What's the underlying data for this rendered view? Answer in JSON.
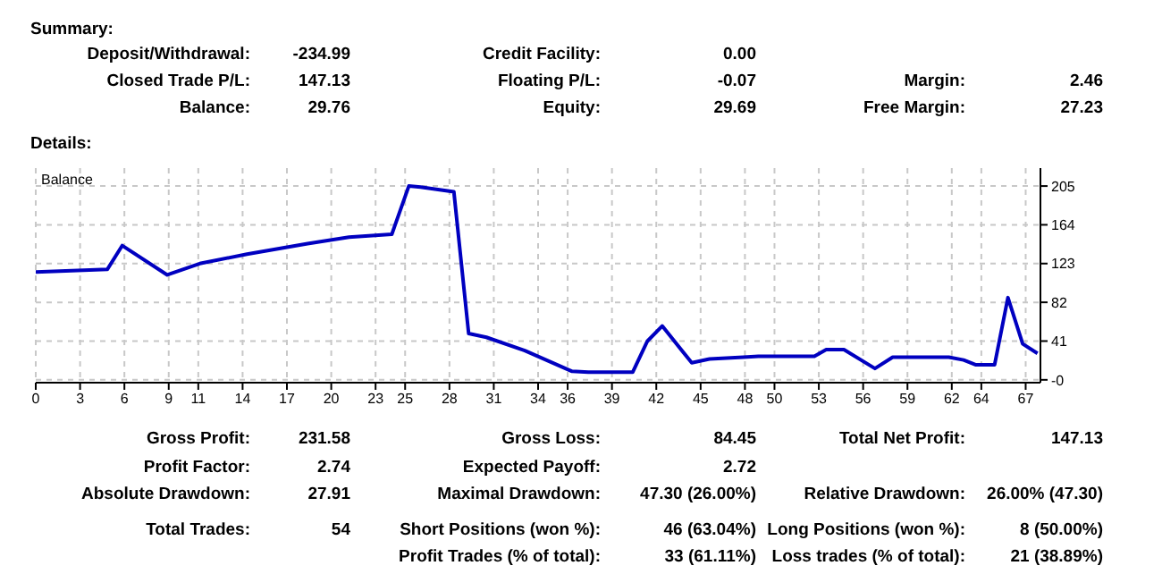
{
  "chart_data": {
    "type": "line",
    "x": [
      0,
      4.85,
      5.85,
      8.9,
      11.1,
      14.3,
      18.4,
      21.2,
      24.1,
      25.25,
      26.05,
      28.3,
      29.3,
      30.5,
      33.1,
      36.3,
      37.4,
      40.4,
      41.4,
      42.4,
      44.4,
      45.6,
      47.9,
      48.9,
      52.7,
      53.5,
      54.7,
      56.8,
      58,
      61.8,
      62.8,
      63.6,
      64.9,
      65.8,
      66.8,
      67.8
    ],
    "series": [
      {
        "name": "Balance",
        "color": "#0000c0",
        "values": [
          114,
          117,
          142,
          111,
          123,
          133,
          144,
          151,
          154,
          205,
          204,
          199,
          49,
          45,
          31,
          9,
          8,
          8,
          41,
          57,
          18,
          22,
          24,
          25,
          25,
          32,
          32,
          12,
          24,
          24,
          21,
          16,
          16,
          87,
          38,
          28
        ]
      }
    ],
    "xlim": [
      0,
      68
    ],
    "xticks": [
      0,
      3,
      6,
      9,
      11,
      14,
      17,
      20,
      23,
      25,
      28,
      31,
      34,
      36,
      39,
      42,
      45,
      48,
      50,
      53,
      56,
      59,
      62,
      64,
      67
    ],
    "ylim": [
      -3,
      224
    ],
    "yticks": [
      {
        "value": 0,
        "label": "-0"
      },
      41,
      82,
      123,
      164,
      205
    ],
    "grid": true,
    "legend": "top left",
    "marker": "none",
    "line_style": "solid",
    "annotations": [
      "Summary:",
      "Deposit/Withdrawal:",
      "-234.99",
      "Credit Facility:",
      "0.00",
      "Closed Trade P/L:",
      "147.13",
      "Floating P/L:",
      "-0.07",
      "Margin:",
      "2.46",
      "Balance:",
      "29.76",
      "Equity:",
      "29.69",
      "Free Margin:",
      "27.23",
      "Details:",
      "Gross Profit:",
      "231.58",
      "Gross Loss:",
      "84.45",
      "Total Net Profit:",
      "147.13",
      "Profit Factor:",
      "2.74",
      "Expected Payoff:",
      "2.72",
      "Absolute Drawdown:",
      "27.91",
      "Maximal Drawdown:",
      "47.30 (26.00%)",
      "Relative Drawdown:",
      "26.00% (47.30)",
      "Total Trades:",
      "54",
      "Short Positions (won %):",
      "46 (63.04%)",
      "Long Positions (won %):",
      "8 (50.00%)",
      "Profit Trades (% of total):",
      "33 (61.11%)",
      "Loss trades (% of total):",
      "21 (38.89%)"
    ]
  }
}
